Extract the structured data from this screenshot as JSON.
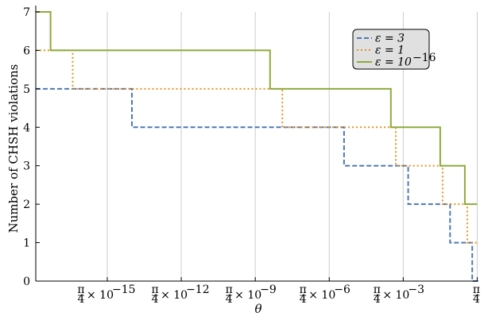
{
  "chart_data": {
    "type": "line",
    "step": true,
    "xscale": "log (powers of 10 times pi/4)",
    "xlabel": "θ",
    "ylabel": "Number of CHSH violations",
    "ylim": [
      0,
      7
    ],
    "yticks": [
      0,
      1,
      2,
      3,
      4,
      5,
      6,
      7
    ],
    "xticks": [
      {
        "value": "π/4 × 10^-15",
        "exp": -15,
        "label": "π/4 × 10",
        "sup": "−15"
      },
      {
        "value": "π/4 × 10^-12",
        "exp": -12,
        "label": "π/4 × 10",
        "sup": "−12"
      },
      {
        "value": "π/4 × 10^-9",
        "exp": -9,
        "label": "π/4 × 10",
        "sup": "−9"
      },
      {
        "value": "π/4 × 10^-6",
        "exp": -6,
        "label": "π/4 × 10",
        "sup": "−6"
      },
      {
        "value": "π/4 × 10^-3",
        "exp": -3,
        "label": "π/4 × 10",
        "sup": "−3"
      },
      {
        "value": "π/4",
        "exp": 0,
        "label": "π/4",
        "sup": ""
      }
    ],
    "xlim_exp": [
      -17.9,
      0.05
    ],
    "grid": "vertical",
    "legend_position": "top-right",
    "series": [
      {
        "name": "ε = 3",
        "name_base": "ε = 3",
        "name_sup": "",
        "color": "#4c78b6",
        "dash": "6,3",
        "steps": [
          {
            "from_exp": -17.9,
            "to_exp": -14.0,
            "value": 5
          },
          {
            "from_exp": -14.0,
            "to_exp": -5.4,
            "value": 4
          },
          {
            "from_exp": -5.4,
            "to_exp": -2.8,
            "value": 3
          },
          {
            "from_exp": -2.8,
            "to_exp": -1.1,
            "value": 2
          },
          {
            "from_exp": -1.1,
            "to_exp": -0.2,
            "value": 1
          },
          {
            "from_exp": -0.2,
            "to_exp": 0.0,
            "value": 0
          }
        ]
      },
      {
        "name": "ε = 1",
        "name_base": "ε = 1",
        "name_sup": "",
        "color": "#e8921c",
        "dash": "2,3",
        "steps": [
          {
            "from_exp": -17.9,
            "to_exp": -17.5,
            "value": 6
          },
          {
            "from_exp": -17.5,
            "to_exp": -16.4,
            "value": 6
          },
          {
            "from_exp": -16.4,
            "to_exp": -7.9,
            "value": 5
          },
          {
            "from_exp": -7.9,
            "to_exp": -3.3,
            "value": 4
          },
          {
            "from_exp": -3.3,
            "to_exp": -1.4,
            "value": 3
          },
          {
            "from_exp": -1.4,
            "to_exp": -0.4,
            "value": 2
          },
          {
            "from_exp": -0.4,
            "to_exp": 0.0,
            "value": 1
          }
        ]
      },
      {
        "name": "ε = 10^-16",
        "name_base": "ε = 10",
        "name_sup": "−16",
        "color": "#8cab3c",
        "dash": "",
        "steps": [
          {
            "from_exp": -17.9,
            "to_exp": -17.3,
            "value": 7
          },
          {
            "from_exp": -17.3,
            "to_exp": -8.4,
            "value": 6
          },
          {
            "from_exp": -8.4,
            "to_exp": -3.5,
            "value": 5
          },
          {
            "from_exp": -3.5,
            "to_exp": -1.5,
            "value": 4
          },
          {
            "from_exp": -1.5,
            "to_exp": -0.5,
            "value": 3
          },
          {
            "from_exp": -0.5,
            "to_exp": 0.0,
            "value": 2
          }
        ]
      }
    ]
  }
}
